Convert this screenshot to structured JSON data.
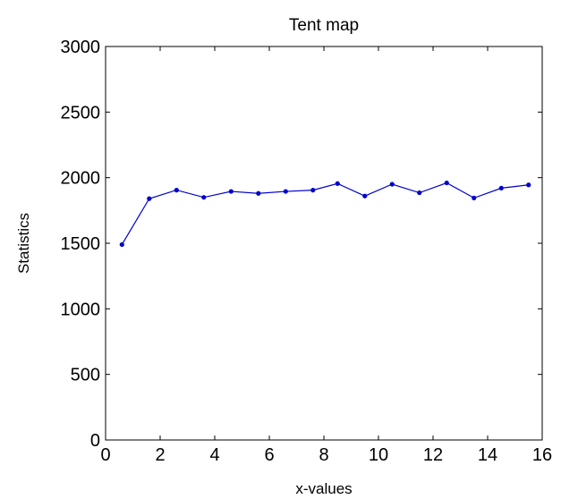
{
  "chart_data": {
    "type": "line",
    "title": "Tent map",
    "xlabel": "x-values",
    "ylabel": "Statistics",
    "xlim": [
      0,
      16
    ],
    "ylim": [
      0,
      3000
    ],
    "xticks": [
      0,
      2,
      4,
      6,
      8,
      10,
      12,
      14,
      16
    ],
    "yticks": [
      0,
      500,
      1000,
      1500,
      2000,
      2500,
      3000
    ],
    "xtick_labels": [
      "0",
      "2",
      "4",
      "6",
      "8",
      "10",
      "12",
      "14",
      "16"
    ],
    "ytick_labels": [
      "0",
      "500",
      "1000",
      "1500",
      "2000",
      "2500",
      "3000"
    ],
    "grid": false,
    "series": [
      {
        "color": "#0000cc",
        "x": [
          0.6,
          1.6,
          2.6,
          3.6,
          4.6,
          5.6,
          6.6,
          7.6,
          8.5,
          9.5,
          10.5,
          11.5,
          12.5,
          13.5,
          14.5,
          15.5
        ],
        "y": [
          1490,
          1840,
          1905,
          1850,
          1895,
          1880,
          1895,
          1905,
          1955,
          1860,
          1950,
          1885,
          1960,
          1845,
          1920,
          1945
        ]
      }
    ]
  }
}
